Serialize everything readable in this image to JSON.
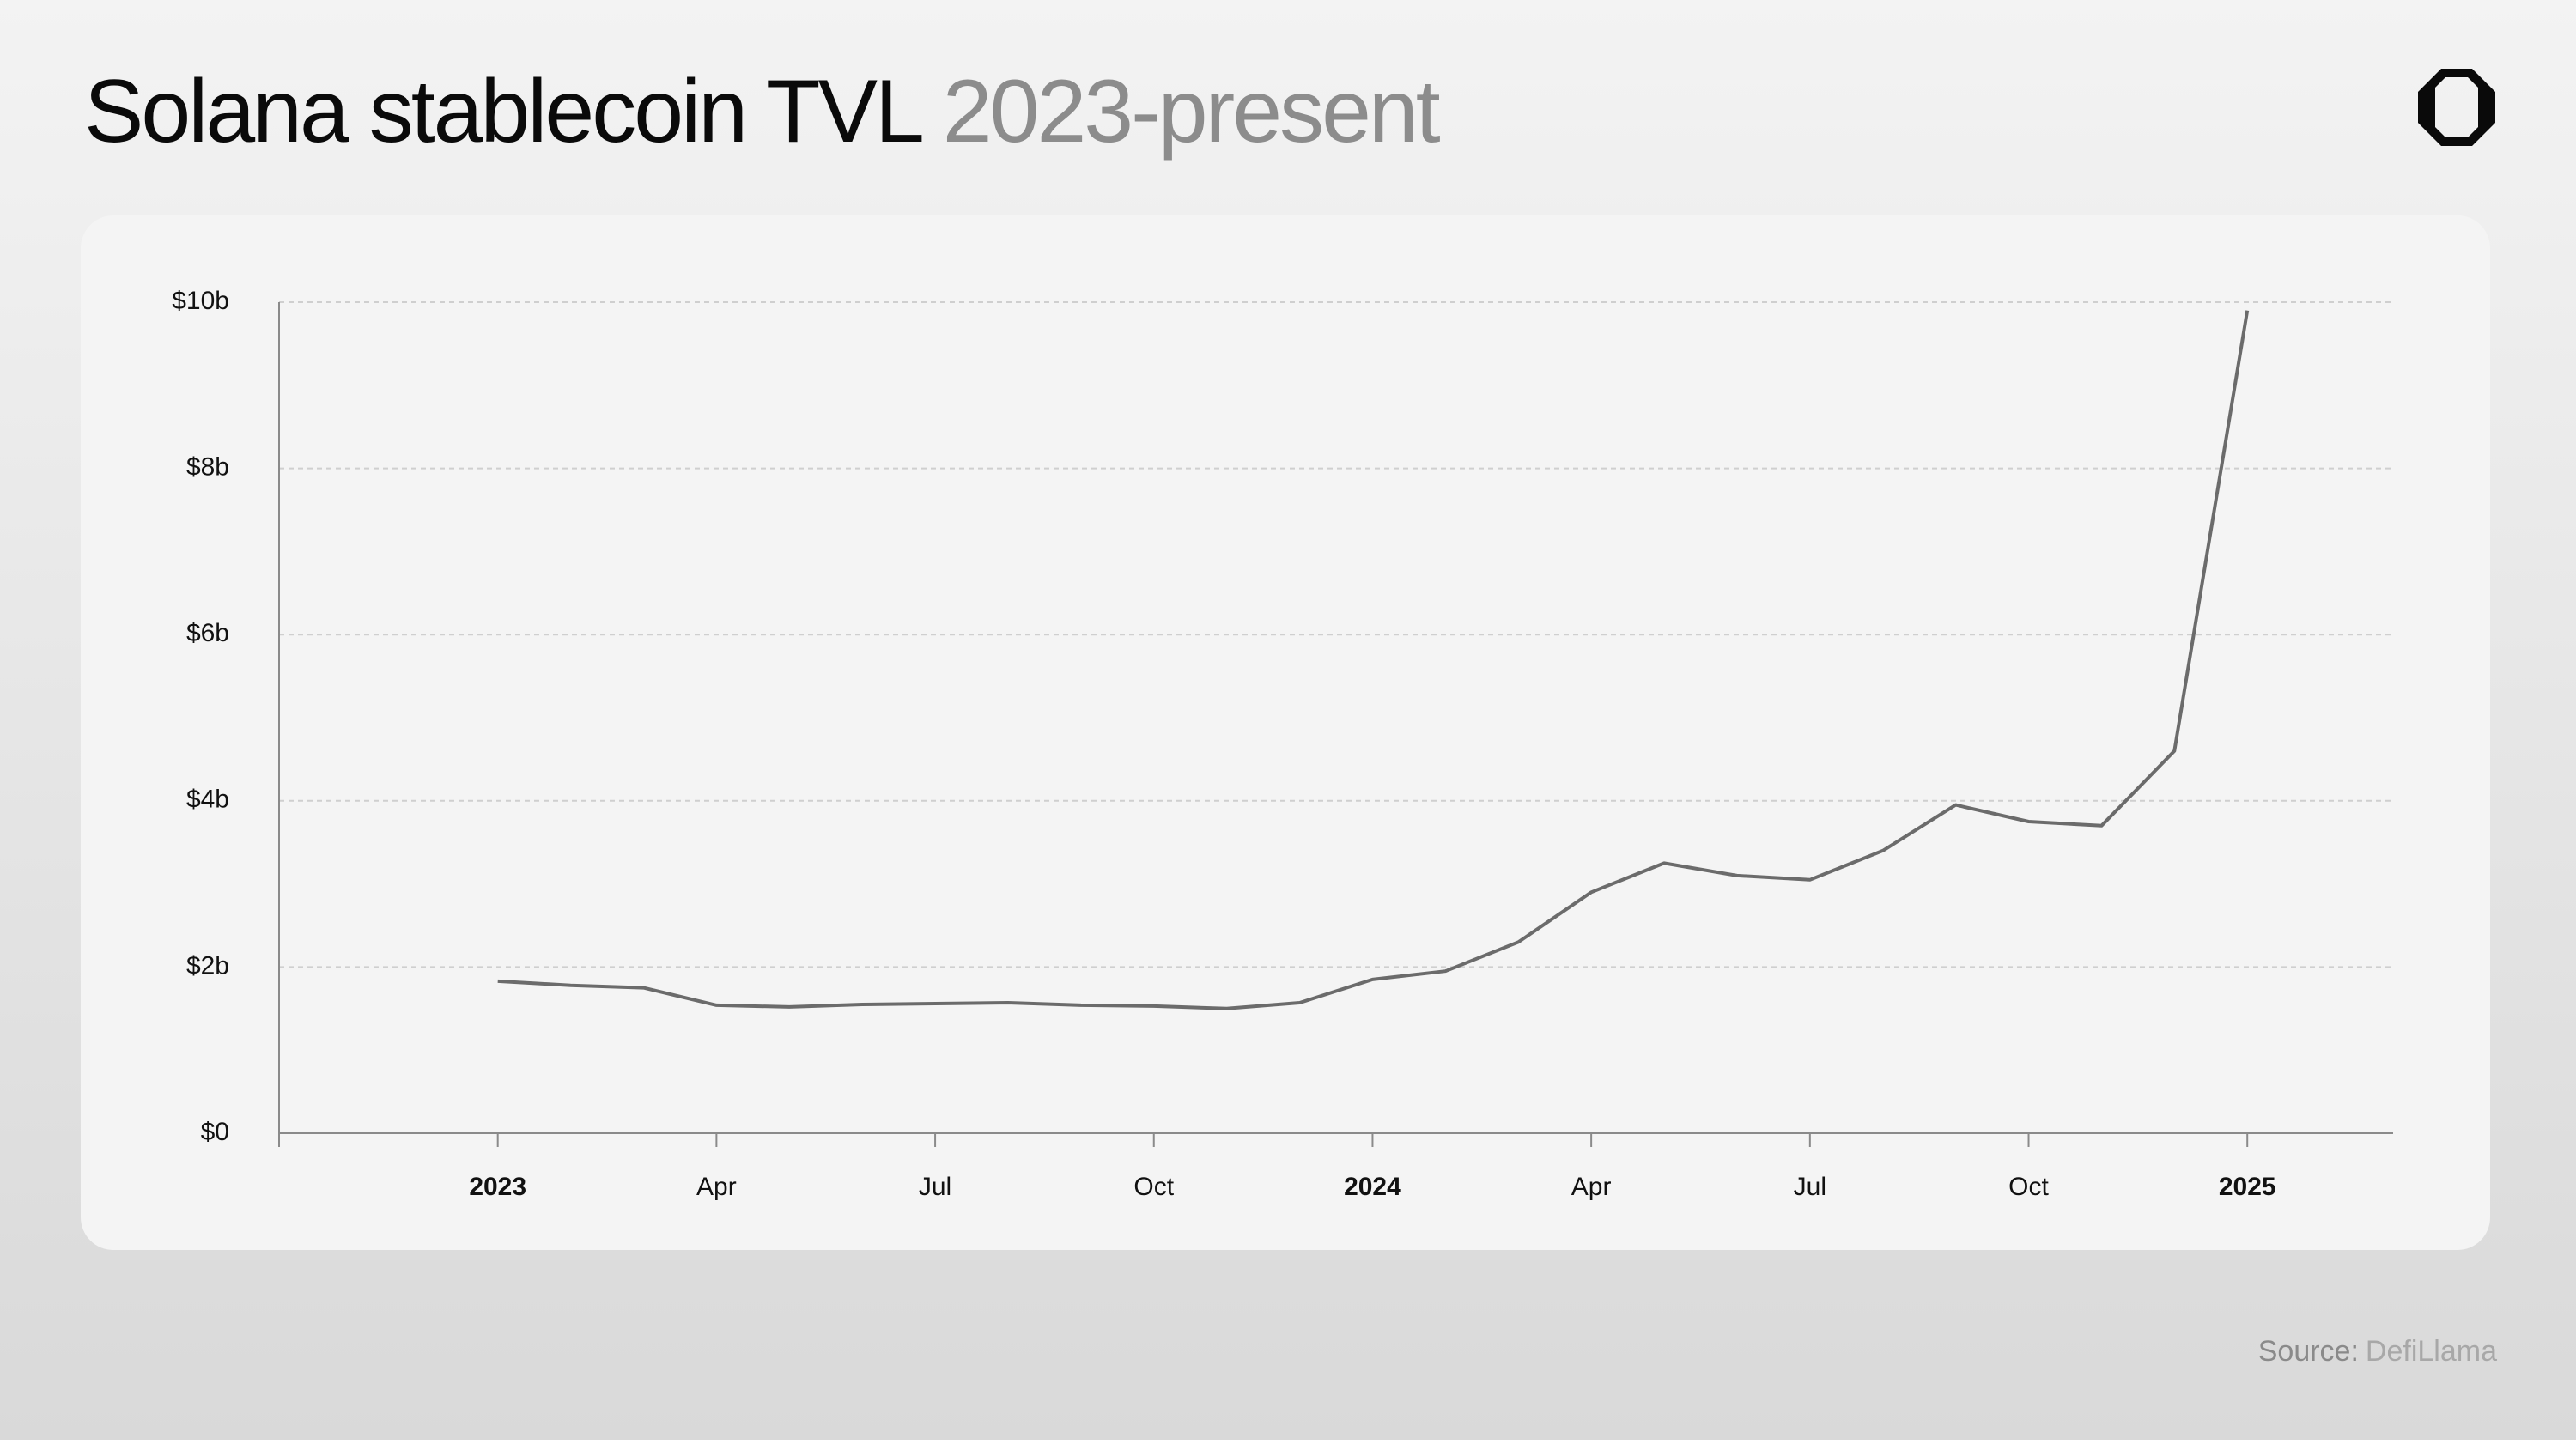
{
  "chart_data": {
    "type": "line",
    "title": "Solana stablecoin TVL",
    "subtitle": "2023-present",
    "source": {
      "label": "Source:",
      "value": "DefiLlama"
    },
    "x": [
      "2023-01",
      "2023-02",
      "2023-03",
      "2023-04",
      "2023-05",
      "2023-06",
      "2023-07",
      "2023-08",
      "2023-09",
      "2023-10",
      "2023-11",
      "2023-12",
      "2024-01",
      "2024-02",
      "2024-03",
      "2024-04",
      "2024-05",
      "2024-06",
      "2024-07",
      "2024-08",
      "2024-09",
      "2024-10",
      "2024-11",
      "2024-12",
      "2025-01"
    ],
    "series": [
      {
        "name": "Stablecoin TVL",
        "color": "#6b6b6b",
        "values": [
          1.83,
          1.78,
          1.75,
          1.54,
          1.52,
          1.55,
          1.56,
          1.57,
          1.54,
          1.53,
          1.5,
          1.57,
          1.85,
          1.95,
          2.3,
          2.9,
          3.25,
          3.1,
          3.05,
          3.4,
          3.95,
          3.75,
          3.7,
          4.6,
          9.9
        ]
      }
    ],
    "xlim": [
      "2022-10",
      "2025-03"
    ],
    "xticks": [
      {
        "value": "2023-01",
        "label": "2023"
      },
      {
        "value": "2023-04",
        "label": "Apr"
      },
      {
        "value": "2023-07",
        "label": "Jul"
      },
      {
        "value": "2023-10",
        "label": "Oct"
      },
      {
        "value": "2024-01",
        "label": "2024"
      },
      {
        "value": "2024-04",
        "label": "Apr"
      },
      {
        "value": "2024-07",
        "label": "Jul"
      },
      {
        "value": "2024-10",
        "label": "Oct"
      },
      {
        "value": "2025-01",
        "label": "2025"
      }
    ],
    "ylim": [
      0,
      10
    ],
    "yticks": [
      {
        "value": 0,
        "label": "$0"
      },
      {
        "value": 2,
        "label": "$2b"
      },
      {
        "value": 4,
        "label": "$4b"
      },
      {
        "value": 6,
        "label": "$6b"
      },
      {
        "value": 8,
        "label": "$8b"
      },
      {
        "value": 10,
        "label": "$10b"
      }
    ],
    "grid": true
  }
}
